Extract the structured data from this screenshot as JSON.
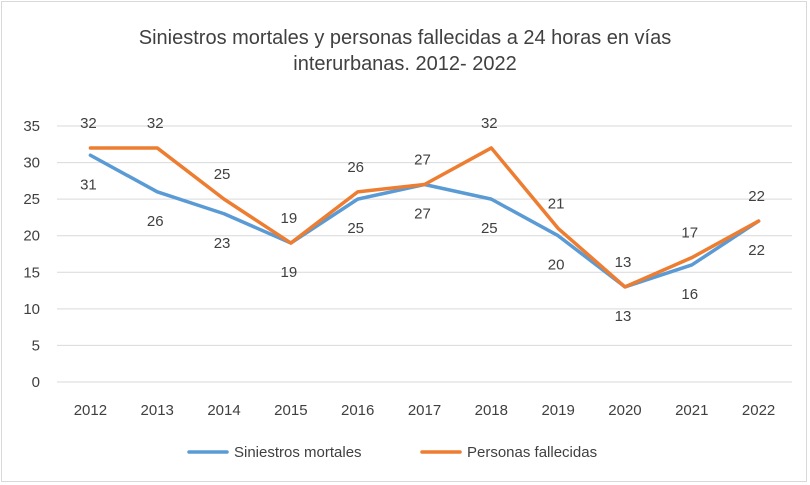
{
  "chart_data": {
    "type": "line",
    "title_lines": [
      "Siniestros mortales y personas fallecidas a 24 horas en vías",
      "interurbanas. 2012- 2022"
    ],
    "categories": [
      "2012",
      "2013",
      "2014",
      "2015",
      "2016",
      "2017",
      "2018",
      "2019",
      "2020",
      "2021",
      "2022"
    ],
    "series": [
      {
        "name": "Siniestros mortales",
        "color": "#5b9bd5",
        "values": [
          31,
          26,
          23,
          19,
          25,
          27,
          25,
          20,
          13,
          16,
          22
        ],
        "label_position": "below"
      },
      {
        "name": "Personas fallecidas",
        "color": "#ed7d31",
        "values": [
          32,
          32,
          25,
          19,
          26,
          27,
          32,
          21,
          13,
          17,
          22
        ],
        "label_position": "above"
      }
    ],
    "y_ticks": [
      0,
      5,
      10,
      15,
      20,
      25,
      30,
      35
    ],
    "ylim": [
      0,
      35
    ],
    "grid": true,
    "legend_position": "bottom"
  }
}
